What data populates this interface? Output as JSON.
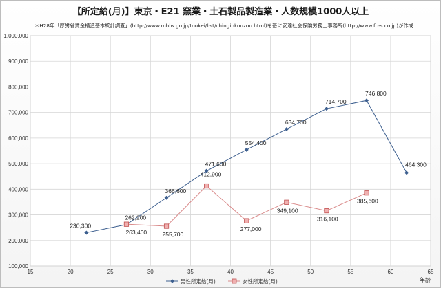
{
  "chart_data": {
    "type": "line",
    "title": "【所定給(月)】東京・E21 窯業・土石製品製造業・人数規模1000人以上",
    "subtitle": "＊H28年「厚労省賃金構造基本統計調査」(http://www.mhlw.go.jp/toukei/list/chinginkouzou.html)を基に安達社会保険労務士事務所(http://www.fp-s.co.jp)が作成",
    "xlabel": "年齢",
    "ylabel": "",
    "xlim": [
      15,
      65
    ],
    "ylim": [
      100000,
      1000000
    ],
    "xticks": [
      "15",
      "20",
      "25",
      "30",
      "35",
      "40",
      "45",
      "50",
      "55",
      "60",
      "65"
    ],
    "yticks": [
      "100,000",
      "200,000",
      "300,000",
      "400,000",
      "500,000",
      "600,000",
      "700,000",
      "800,000",
      "900,000",
      "1,000,000"
    ],
    "grid": true,
    "legend_position": "bottom",
    "series": [
      {
        "name": "男性所定給(月)",
        "color": "#3d5f8f",
        "marker": "diamond",
        "x": [
          22,
          27,
          32,
          37,
          42,
          47,
          52,
          57,
          62
        ],
        "y": [
          230300,
          262200,
          366600,
          471600,
          554400,
          634700,
          714700,
          746800,
          464300
        ],
        "labels": [
          "230,300",
          "262,200",
          "366,600",
          "471,600",
          "554,400",
          "634,700",
          "714,700",
          "746,800",
          "464,300"
        ]
      },
      {
        "name": "女性所定給(月)",
        "color": "#d98a8a",
        "marker": "square",
        "x": [
          27,
          32,
          37,
          42,
          47,
          52,
          57
        ],
        "y": [
          263400,
          255700,
          412900,
          277000,
          349100,
          316100,
          385600
        ],
        "labels": [
          "263,400",
          "255,700",
          "412,900",
          "277,000",
          "349,100",
          "316,100",
          "385,600"
        ]
      }
    ]
  }
}
